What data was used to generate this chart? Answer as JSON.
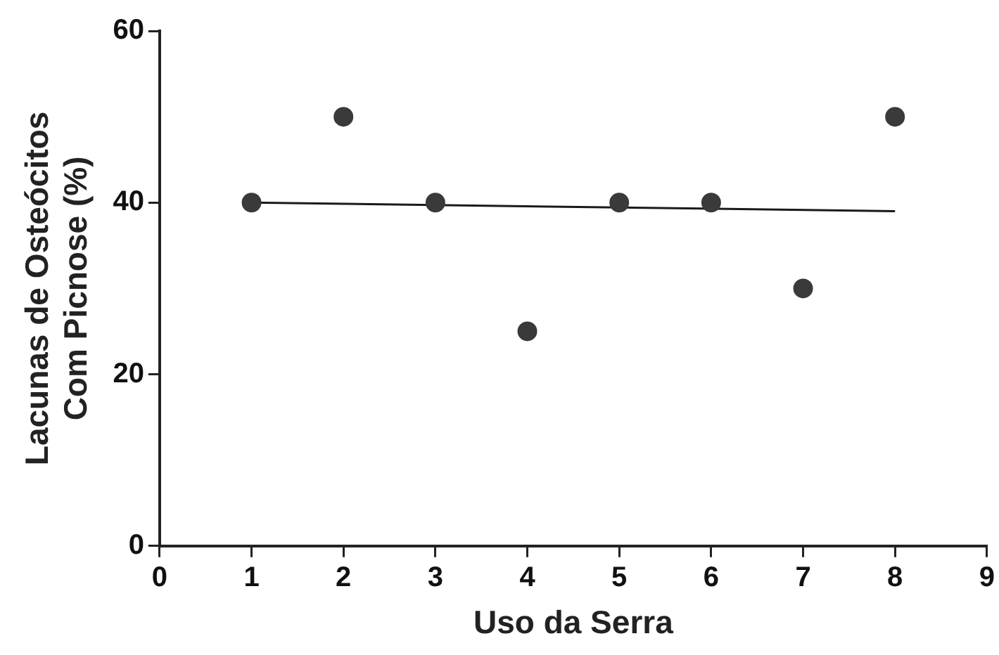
{
  "chart_data": {
    "type": "scatter",
    "xlabel": "Uso da Serra",
    "ylabel": "Lacunas de Osteócitos\nCom Picnose (%)",
    "xlim": [
      0,
      9
    ],
    "xticks": [
      0,
      1,
      2,
      3,
      4,
      5,
      6,
      7,
      8,
      9
    ],
    "ylim": [
      0,
      60
    ],
    "yticks": [
      0,
      20,
      40,
      60
    ],
    "grid": false,
    "legend": false,
    "series": [
      {
        "type": "scatter",
        "marker": "circle",
        "color": "#3a3a3a",
        "x": [
          1,
          2,
          3,
          4,
          5,
          6,
          7,
          8
        ],
        "values": [
          40,
          50,
          40,
          25,
          40,
          40,
          30,
          50
        ]
      },
      {
        "type": "line",
        "color": "#1a1a1a",
        "x": [
          1,
          8
        ],
        "values": [
          40,
          39
        ],
        "line_style": "solid"
      }
    ]
  }
}
